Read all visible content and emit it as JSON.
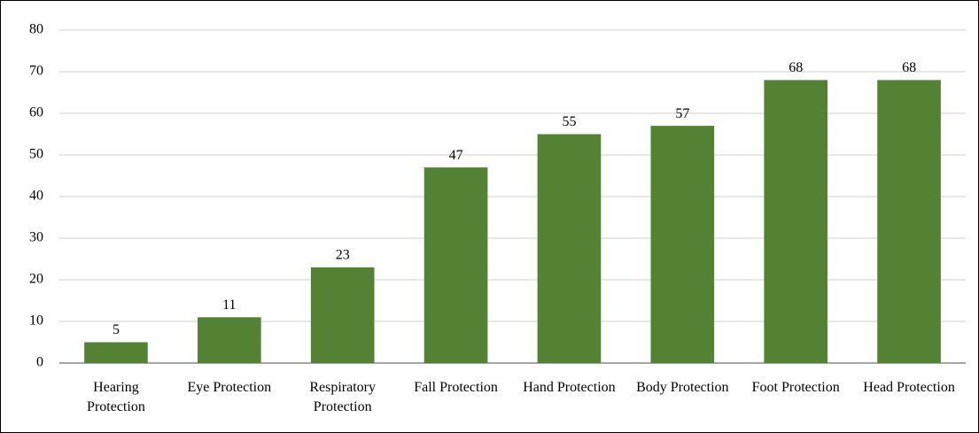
{
  "chart_data": {
    "type": "bar",
    "categories": [
      "Hearing Protection",
      "Eye Protection",
      "Respiratory Protection",
      "Fall Protection",
      "Hand Protection",
      "Body Protection",
      "Foot Protection",
      "Head Protection"
    ],
    "values": [
      5,
      11,
      23,
      47,
      55,
      57,
      68,
      68
    ],
    "color": "#548235",
    "ylim": [
      0,
      80
    ],
    "yticks": [
      0,
      10,
      20,
      30,
      40,
      50,
      60,
      70,
      80
    ],
    "grid": true
  }
}
